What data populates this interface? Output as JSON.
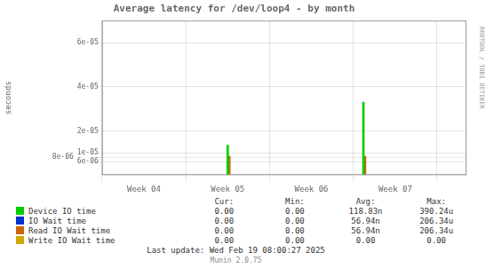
{
  "chart_data": {
    "type": "bar",
    "title": "Average latency for /dev/loop4 - by month",
    "ylabel": "seconds",
    "xlim": [
      3.5,
      7.85
    ],
    "xticks": [
      {
        "value": 4,
        "label": "Week 04"
      },
      {
        "value": 5,
        "label": "Week 05"
      },
      {
        "value": 6,
        "label": "Week 06"
      },
      {
        "value": 7,
        "label": "Week 07"
      }
    ],
    "ylim": [
      0.0,
      7e-05
    ],
    "yticks": [
      {
        "value": 6e-06,
        "label": "6e-06"
      },
      {
        "value": 8e-06,
        "label": "8e-06"
      },
      {
        "value": 1e-05,
        "label": "1e-05"
      },
      {
        "value": 2e-05,
        "label": "2e-05"
      },
      {
        "value": 4e-05,
        "label": "4e-05"
      },
      {
        "value": 6e-05,
        "label": "6e-05"
      }
    ],
    "grid": true,
    "legend": "bottom",
    "table_headers": [
      "Cur:",
      "Min:",
      "Avg:",
      "Max:"
    ],
    "series": [
      {
        "name": "Device IO time",
        "color": "#00cc00",
        "x": [
          5.0,
          6.62
        ],
        "values": [
          1.35e-05,
          3.3e-05
        ],
        "stats": [
          "0.00",
          "0.00",
          "118.83n",
          "390.24u"
        ]
      },
      {
        "name": "IO Wait time",
        "color": "#0033cc",
        "x": [],
        "values": [],
        "stats": [
          "0.00",
          "0.00",
          "56.94n",
          "206.34u"
        ]
      },
      {
        "name": "Read IO Wait time",
        "color": "#cc6600",
        "x": [
          5.02,
          6.64
        ],
        "values": [
          8.5e-06,
          8.5e-06
        ],
        "stats": [
          "0.00",
          "0.00",
          "56.94n",
          "206.34u"
        ]
      },
      {
        "name": "Write IO Wait time",
        "color": "#ccaa00",
        "x": [],
        "values": [],
        "stats": [
          "0.00",
          "0.00",
          "0.00",
          "0.00"
        ]
      }
    ],
    "annotations": [
      "Last update: Wed Feb 19 08:00:27 2025",
      "Munin 2.0.75",
      "RRDTOOL / TOBI OETIKER"
    ]
  }
}
